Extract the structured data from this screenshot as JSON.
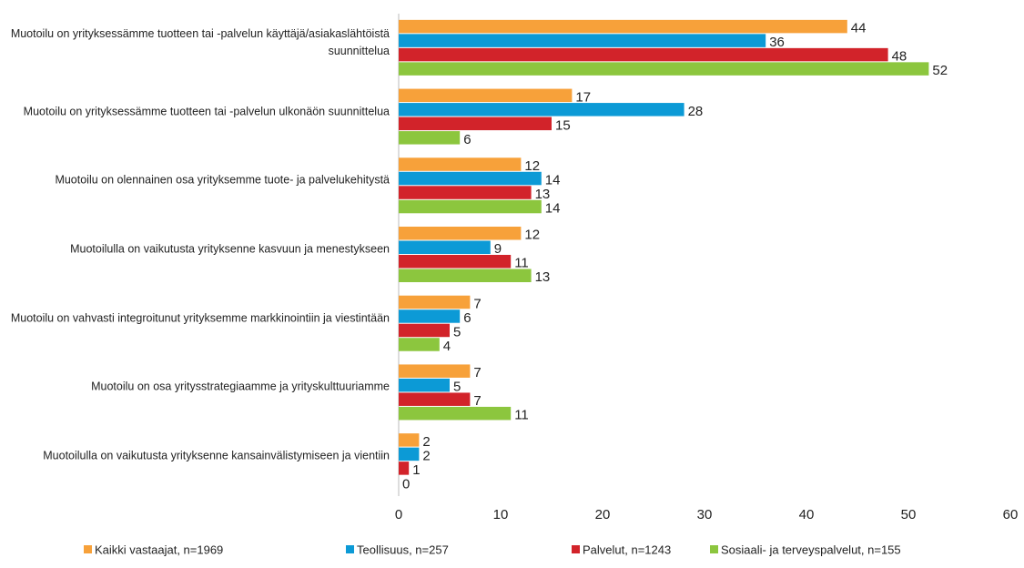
{
  "chart_data": {
    "type": "hbar",
    "categories": [
      "Muotoilu on yrityksessämme tuotteen tai -palvelun käyttäjä/asiakaslähtöistä suunnittelua",
      "Muotoilu on yrityksessämme tuotteen tai -palvelun ulkonäön suunnittelua",
      "Muotoilu on olennainen osa yrityksemme tuote- ja palvelukehitystä",
      "Muotoilulla on vaikutusta yrityksenne kasvuun ja menestykseen",
      "Muotoilu on vahvasti integroitunut yrityksemme markkinointiin ja viestintään",
      "Muotoilu on osa yritysstrategiaamme ja yrityskulttuuriamme",
      "Muotoilulla on vaikutusta yrityksenne kansainvälistymiseen ja vientiin"
    ],
    "series": [
      {
        "name": "Kaikki vastaajat, n=1969",
        "color": "#f7a13a",
        "values": [
          44,
          17,
          12,
          12,
          7,
          7,
          2
        ]
      },
      {
        "name": "Teollisuus, n=257",
        "color": "#0c9ad6",
        "values": [
          36,
          28,
          14,
          9,
          6,
          5,
          2
        ]
      },
      {
        "name": "Palvelut, n=1243",
        "color": "#d2232a",
        "values": [
          48,
          15,
          13,
          11,
          5,
          7,
          1
        ]
      },
      {
        "name": "Sosiaali- ja terveyspalvelut, n=155",
        "color": "#8cc63e",
        "values": [
          52,
          6,
          14,
          13,
          4,
          11,
          0
        ]
      }
    ],
    "xlim": [
      0,
      60
    ],
    "xticks": [
      0,
      10,
      20,
      30,
      40,
      50,
      60
    ],
    "legend": "bottom"
  }
}
